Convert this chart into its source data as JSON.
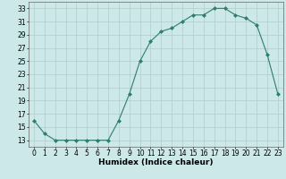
{
  "x": [
    0,
    1,
    2,
    3,
    4,
    5,
    6,
    7,
    8,
    9,
    10,
    11,
    12,
    13,
    14,
    15,
    16,
    17,
    18,
    19,
    20,
    21,
    22,
    23
  ],
  "y": [
    16,
    14,
    13,
    13,
    13,
    13,
    13,
    13,
    16,
    20,
    25,
    28,
    29.5,
    30,
    31,
    32,
    32,
    33,
    33,
    32,
    31.5,
    30.5,
    26,
    20
  ],
  "line_color": "#2e7d6e",
  "marker": "D",
  "marker_size": 2.0,
  "bg_color": "#cce8e8",
  "grid_color": "#b0cccc",
  "xlabel": "Humidex (Indice chaleur)",
  "ylim": [
    12,
    34
  ],
  "yticks": [
    13,
    15,
    17,
    19,
    21,
    23,
    25,
    27,
    29,
    31,
    33
  ],
  "xlim": [
    -0.5,
    23.5
  ],
  "xticks": [
    0,
    1,
    2,
    3,
    4,
    5,
    6,
    7,
    8,
    9,
    10,
    11,
    12,
    13,
    14,
    15,
    16,
    17,
    18,
    19,
    20,
    21,
    22,
    23
  ],
  "xtick_labels": [
    "0",
    "1",
    "2",
    "3",
    "4",
    "5",
    "6",
    "7",
    "8",
    "9",
    "10",
    "11",
    "12",
    "13",
    "14",
    "15",
    "16",
    "17",
    "18",
    "19",
    "20",
    "21",
    "22",
    "23"
  ],
  "tick_fontsize": 5.5,
  "xlabel_fontsize": 6.5
}
